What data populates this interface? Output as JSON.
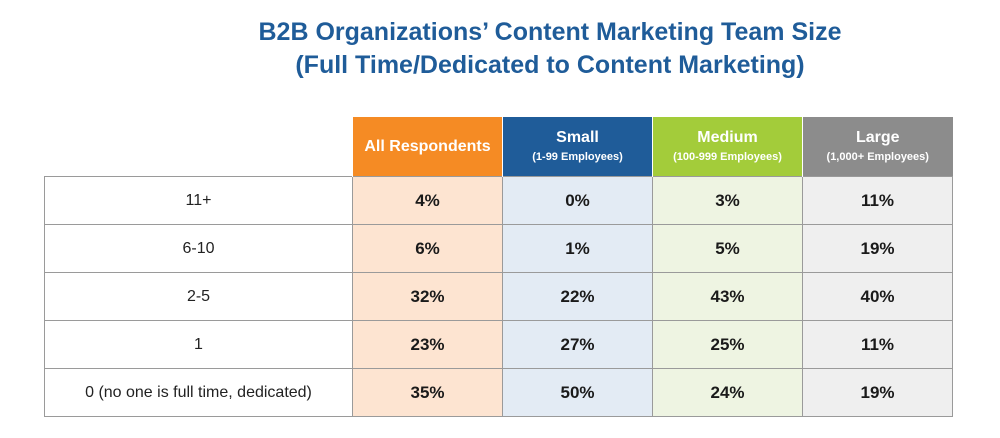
{
  "chart_data": {
    "type": "table",
    "title": "B2B Organizations’ Content Marketing Team Size",
    "subtitle": "(Full Time/Dedicated to Content Marketing)",
    "columns": [
      {
        "label": "All Respondents",
        "sublabel": "",
        "header_color": "#f58b24",
        "cell_color": "#fde4d1"
      },
      {
        "label": "Small",
        "sublabel": "(1-99 Employees)",
        "header_color": "#1f5c99",
        "cell_color": "#e3ebf4"
      },
      {
        "label": "Medium",
        "sublabel": "(100-999 Employees)",
        "header_color": "#a3cc3a",
        "cell_color": "#eef4e2"
      },
      {
        "label": "Large",
        "sublabel": "(1,000+ Employees)",
        "header_color": "#8c8c8c",
        "cell_color": "#efefef"
      }
    ],
    "rows": [
      {
        "label": "11+",
        "values": [
          "4%",
          "0%",
          "3%",
          "11%"
        ]
      },
      {
        "label": "6-10",
        "values": [
          "6%",
          "1%",
          "5%",
          "19%"
        ]
      },
      {
        "label": "2-5",
        "values": [
          "32%",
          "22%",
          "43%",
          "40%"
        ]
      },
      {
        "label": "1",
        "values": [
          "23%",
          "27%",
          "25%",
          "11%"
        ]
      },
      {
        "label": "0 (no one is full time, dedicated)",
        "values": [
          "35%",
          "50%",
          "24%",
          "19%"
        ]
      }
    ]
  }
}
